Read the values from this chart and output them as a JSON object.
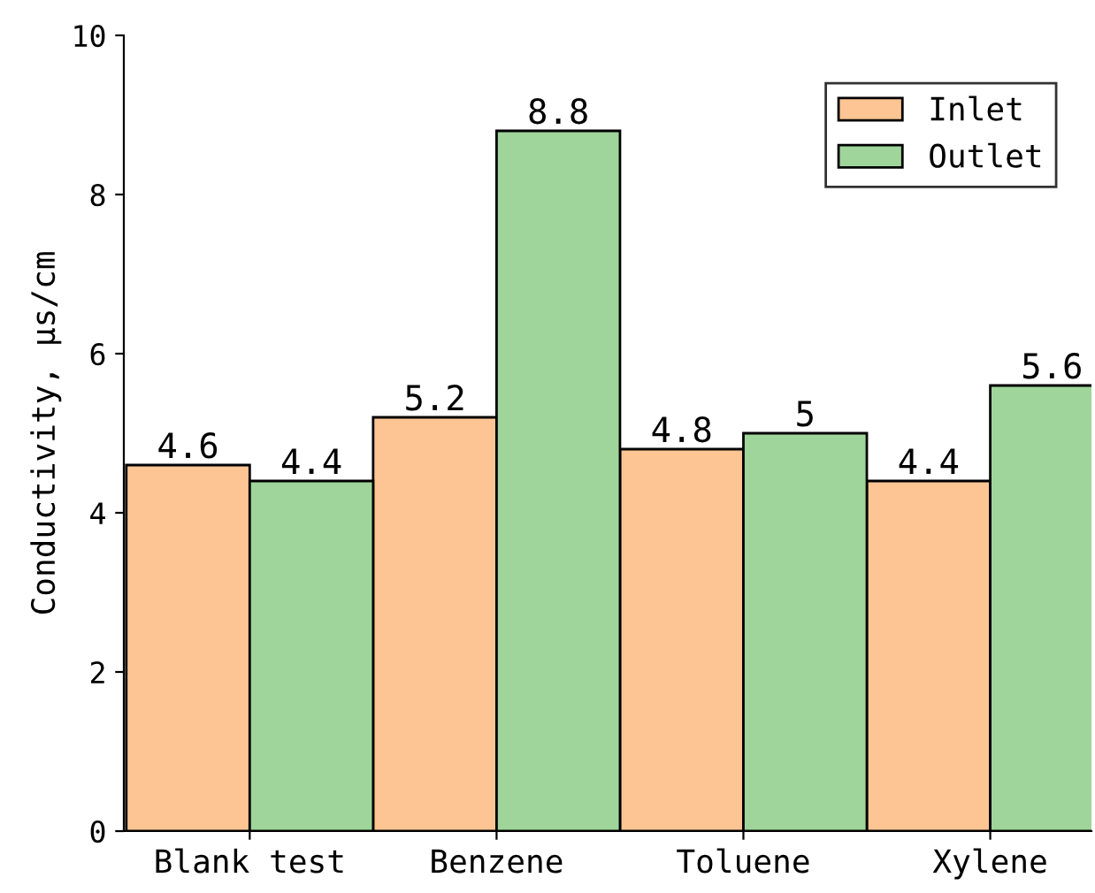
{
  "chart_data": {
    "type": "bar",
    "ylabel": "Conductivity, μs/cm",
    "categories": [
      "Blank test",
      "Benzene",
      "Toluene",
      "Xylene"
    ],
    "series": [
      {
        "name": "Inlet",
        "color": "#fdc593",
        "values": [
          4.6,
          5.2,
          4.8,
          4.4
        ]
      },
      {
        "name": "Outlet",
        "color": "#9fd59a",
        "values": [
          4.4,
          8.8,
          5,
          5.6
        ]
      }
    ],
    "ylim": [
      0,
      10
    ],
    "yticks": [
      0,
      2,
      4,
      6,
      8,
      10
    ],
    "data_labels": true,
    "legend": "top right",
    "grid": false
  }
}
